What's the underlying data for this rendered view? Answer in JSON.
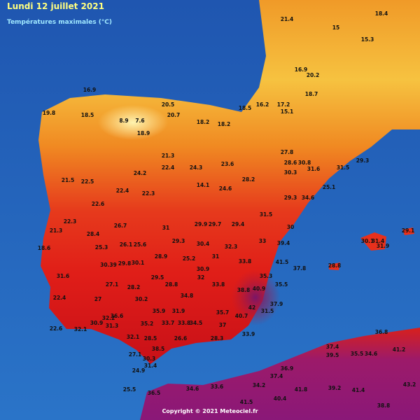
{
  "header": {
    "title": "Lundi 12 juillet 2021",
    "subtitle": "Températures maximales (°C)"
  },
  "footer": "Copyright © 2021 Meteociel.fr",
  "stations": [
    "16.9",
    "19.8",
    "18.5",
    "8.9",
    "7.6",
    "18.9",
    "20.5",
    "20.7",
    "18.2",
    "18.2",
    "18.5",
    "16.2",
    "17.2",
    "18.7",
    "15",
    "15.3",
    "18.4",
    "21.4",
    "16.9",
    "20.2",
    "15.1",
    "21.3",
    "24.2",
    "22.4",
    "24.3",
    "23.6",
    "28.2",
    "27.8",
    "28.6",
    "30.8",
    "31.6",
    "30.3",
    "31.5",
    "29.3",
    "25.1",
    "24.6",
    "14.1",
    "22.3",
    "22.4",
    "22.5",
    "21.5",
    "22.6",
    "22.3",
    "28.4",
    "26.7",
    "31",
    "29.9",
    "29.7",
    "29.4",
    "31.5",
    "29.3",
    "34.6",
    "30",
    "33",
    "32.3",
    "30.4",
    "29.3",
    "26.1",
    "25.6",
    "25.3",
    "21.3",
    "18.6",
    "30.39",
    "29.8",
    "30.1",
    "28.9",
    "25.2",
    "31",
    "33.8",
    "39.4",
    "41.5",
    "37.8",
    "30.9",
    "31.6",
    "27.1",
    "28.2",
    "29.5",
    "28.8",
    "32",
    "33.8",
    "38.8",
    "40.9",
    "35.3",
    "35.5",
    "37.9",
    "42",
    "31.5",
    "22.4",
    "27",
    "30.2",
    "35.9",
    "31.9",
    "34.8",
    "35.7",
    "40.7",
    "36.6",
    "35.2",
    "33.7",
    "33.8",
    "34.5",
    "37",
    "32.2",
    "31.3",
    "30.9",
    "32.1",
    "22.6",
    "33.9",
    "32.1",
    "28.5",
    "38.5",
    "26.6",
    "28.3",
    "27.1",
    "30.3",
    "31.4",
    "24.9",
    "25.5",
    "36.5",
    "34.6",
    "33.6",
    "34.2",
    "37.4",
    "36.9",
    "37.4",
    "39.5",
    "35.5",
    "34.6",
    "36.8",
    "41.2",
    "43.2",
    "41.8",
    "39.2",
    "41.4",
    "40.4",
    "41.5",
    "38.8",
    "28.8",
    "31.4",
    "31.9",
    "29.1",
    "30.1"
  ]
}
